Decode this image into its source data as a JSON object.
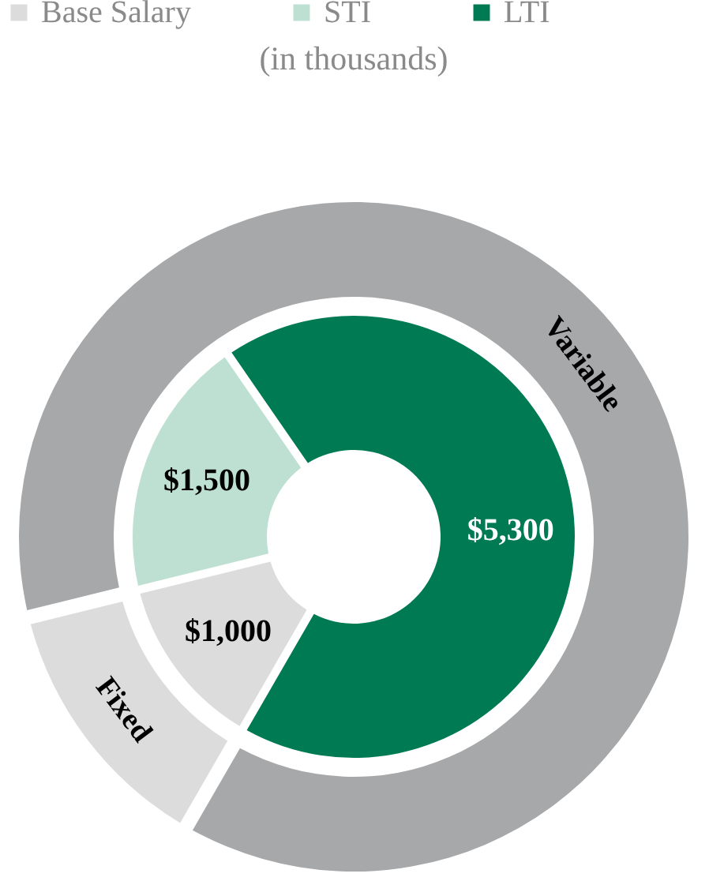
{
  "chart_data": [
    {
      "type": "donut",
      "subtitle": "(in thousands)",
      "categories": [
        "Base Salary",
        "STI",
        "LTI"
      ],
      "values": [
        1000,
        1500,
        5300
      ],
      "colors": [
        "#dcdcdd",
        "#bee0d2",
        "#007a53"
      ],
      "value_labels": [
        "$1,000",
        "$1,500",
        "$5,300"
      ],
      "legend": "top"
    },
    {
      "type": "donut",
      "categories": [
        "Fixed",
        "Variable"
      ],
      "values": [
        12.8,
        87.2
      ],
      "colors": [
        "#dcdcdd",
        "#a7a8aa"
      ]
    }
  ]
}
